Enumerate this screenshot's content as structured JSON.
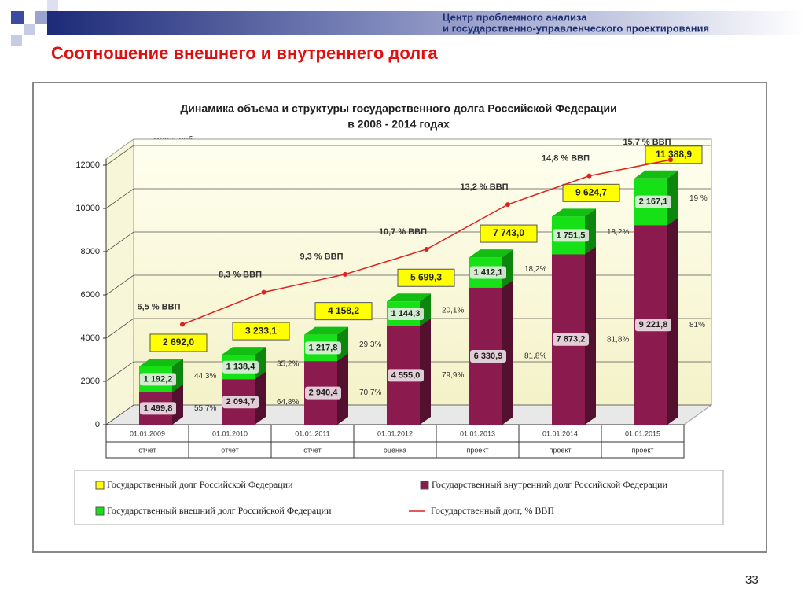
{
  "header": {
    "org_line1": "Центр проблемного анализа",
    "org_line2": "и государственно-управленческого проектирования",
    "title": "Соотношение внешнего и внутреннего долга",
    "page_number": "33"
  },
  "chart_data": {
    "type": "stacked_bar_line",
    "title": "Динамика  объема и структуры государственного долга Российской Федерации",
    "subtitle": "в 2008 - 2014 годах",
    "y_axis_label": "млрд. руб.",
    "categories": [
      "01.01.2009",
      "01.01.2010",
      "01.01.2011",
      "01.01.2012",
      "01.01.2013",
      "01.01.2014",
      "01.01.2015"
    ],
    "category_notes": [
      "отчет",
      "отчет",
      "отчет",
      "оценка",
      "проект",
      "проект",
      "проект"
    ],
    "ylim": [
      0,
      12000
    ],
    "yticks": [
      0,
      2000,
      4000,
      6000,
      8000,
      10000,
      12000
    ],
    "grid": true,
    "y2lim": [
      0.9,
      15.4
    ],
    "series": [
      {
        "name": "Государственный долг Российской Федерации",
        "type": "label",
        "color": "#ffff00",
        "values": [
          2692.0,
          3233.1,
          4158.2,
          5699.3,
          7743.0,
          9624.7,
          11388.9
        ],
        "value_labels": [
          "2 692,0",
          "3 233,1",
          "4 158,2",
          "5 699,3",
          "7 743,0",
          "9 624,7",
          "11 388,9"
        ]
      },
      {
        "name": "Государственный внутренний долг Российской Федерации",
        "type": "bar",
        "color": "#8b1a4f",
        "values": [
          1499.8,
          2094.7,
          2940.4,
          4555.0,
          6330.9,
          7873.2,
          9221.8
        ],
        "value_labels": [
          "1 499,8",
          "2 094,7",
          "2 940,4",
          "4 555,0",
          "6 330,9",
          "7 873,2",
          "9 221,8"
        ],
        "shares": [
          55.7,
          64.8,
          70.7,
          79.9,
          81.8,
          81.8,
          81
        ],
        "share_labels": [
          "55,7%",
          "64,8%",
          "70,7%",
          "79,9%",
          "81,8%",
          "81,8%",
          "81%"
        ]
      },
      {
        "name": "Государственный внешний долг Российской Федерации",
        "type": "bar",
        "color": "#16e016",
        "values": [
          1192.2,
          1138.4,
          1217.8,
          1144.3,
          1412.1,
          1751.5,
          2167.1
        ],
        "value_labels": [
          "1 192,2",
          "1 138,4",
          "1 217,8",
          "1 144,3",
          "1 412,1",
          "1 751,5",
          "2 167,1"
        ],
        "shares": [
          44.3,
          35.2,
          29.3,
          20.1,
          18.2,
          18.2,
          19
        ],
        "share_labels": [
          "44,3%",
          "35,2%",
          "29,3%",
          "20,1%",
          "18,2%",
          "18,2%",
          "19 %"
        ]
      },
      {
        "name": "Государственный долг, % ВВП",
        "type": "line",
        "axis": "y2",
        "color": "#e02020",
        "values": [
          6.5,
          8.3,
          9.3,
          10.7,
          13.2,
          14.8,
          15.7
        ],
        "value_labels": [
          "6,5 % ВВП",
          "8,3 % ВВП",
          "9,3 % ВВП",
          "10,7 % ВВП",
          "13,2 % ВВП",
          "14,8 % ВВП",
          "15,7 % ВВП"
        ]
      }
    ]
  }
}
